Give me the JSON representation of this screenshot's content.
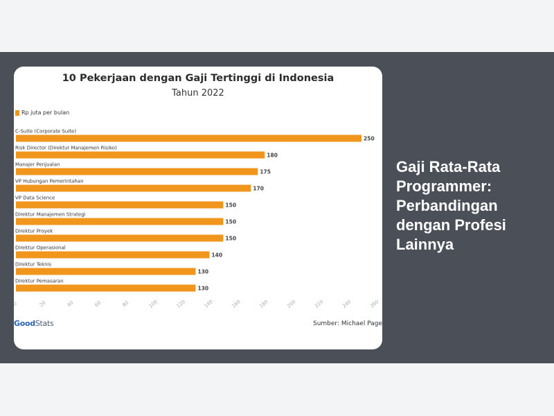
{
  "article": {
    "title": "Gaji Rata-Rata Programmer: Perbandingan dengan Profesi Lainnya"
  },
  "image_card": {
    "logo_good": "Good",
    "logo_stats": "Stats",
    "source": "Sumber: Michael Page"
  },
  "chart_data": {
    "type": "bar",
    "orientation": "horizontal",
    "title": "10 Pekerjaan dengan Gaji Tertinggi di Indonesia",
    "subtitle": "Tahun 2022",
    "legend": "Rp juta per bulan",
    "legend_position": "top-left",
    "bar_color": "#f0961d",
    "categories": [
      "C-Suite (Corporate Suite)",
      "Risk Director (Direktur Manajemen Risiko)",
      "Manajer Penjualan",
      "VP Hubungan Pemerintahan",
      "VP Data Science",
      "Direktur Manajemen Strategi",
      "Direktur Proyek",
      "Direktur Operasional",
      "Direktur Teknis",
      "Direktur Pemasaran"
    ],
    "values": [
      250,
      180,
      175,
      170,
      150,
      150,
      150,
      140,
      130,
      130
    ],
    "xlim": [
      0,
      260
    ],
    "xticks": [
      "0",
      "20",
      "40",
      "60",
      "80",
      "100",
      "120",
      "140",
      "160",
      "180",
      "200",
      "220",
      "240",
      "260"
    ],
    "grid": false
  },
  "colors": {
    "band": "#4b5058",
    "page": "#f3f4f6",
    "card": "#ffffff",
    "title_text": "#ffffff"
  }
}
